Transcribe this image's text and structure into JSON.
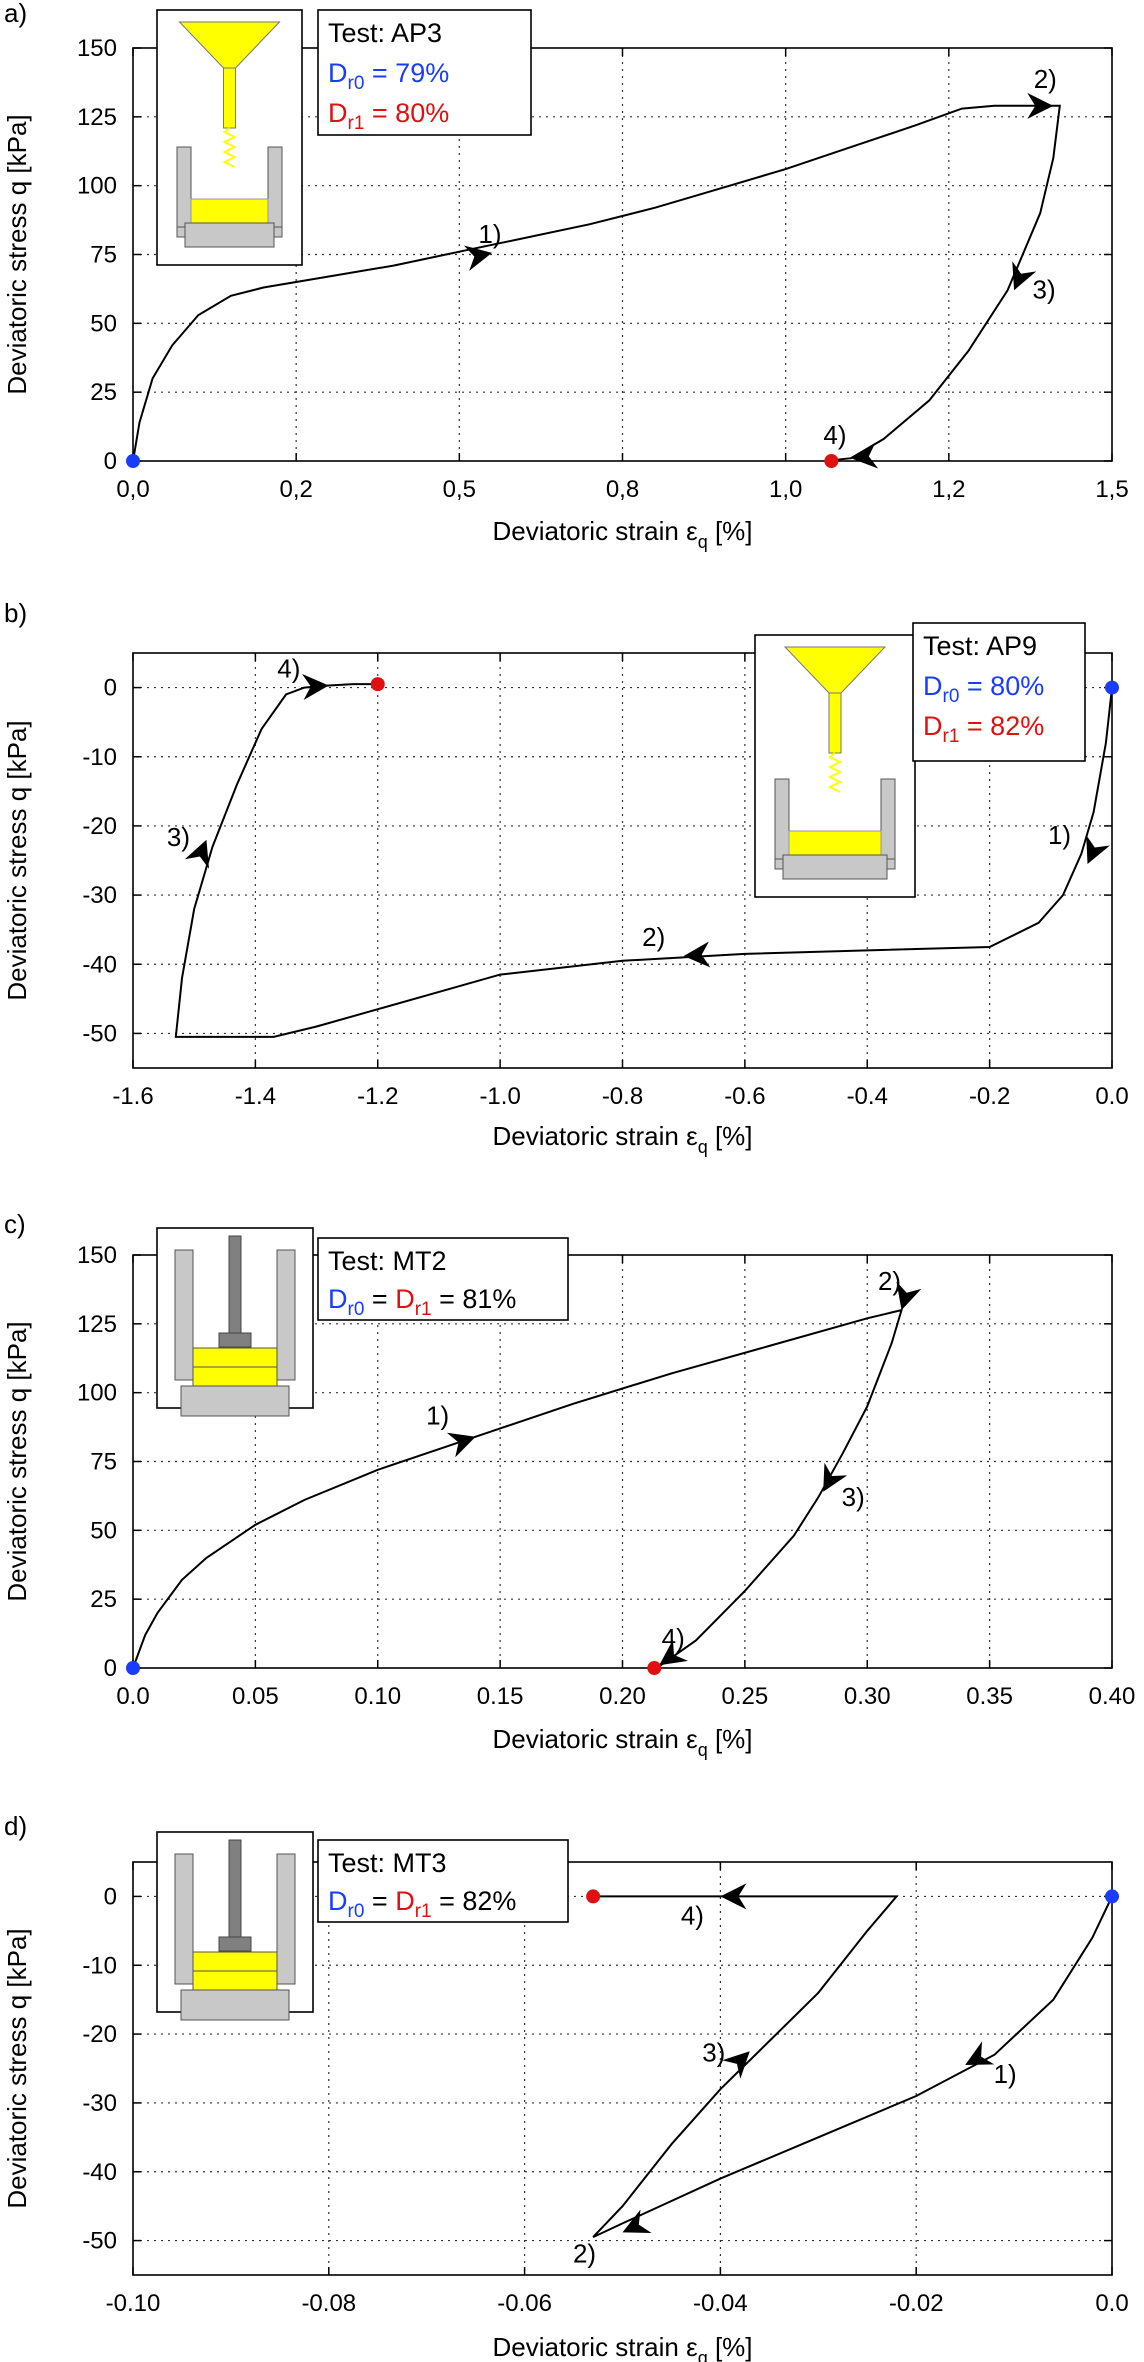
{
  "chart_data": [
    {
      "type": "line",
      "panel_label": "a)",
      "xlabel": "Deviatoric strain",
      "xlabel_unit": "[%]",
      "ylabel": "Deviatoric stress q [kPa]",
      "xlim": [
        0,
        1.5
      ],
      "ylim": [
        0,
        150
      ],
      "xticks": [
        0,
        0.25,
        0.5,
        0.75,
        1.0,
        1.25,
        1.5
      ],
      "xtick_labels": [
        "0,0",
        "0,2",
        "0,5",
        "0,8",
        "1,0",
        "1,2",
        "1,5"
      ],
      "yticks": [
        0,
        25,
        50,
        75,
        100,
        125,
        150
      ],
      "ytick_labels": [
        "0",
        "25",
        "50",
        "75",
        "100",
        "125",
        "150"
      ],
      "legend": {
        "title": "Test: AP3",
        "dr0_text": "D",
        "dr0_sub": "r0",
        "dr0_value": " = 79%",
        "dr1_text": "D",
        "dr1_sub": "r1",
        "dr1_value": " = 80%"
      },
      "inset": "pluviation",
      "series": [
        {
          "name": "AP3",
          "x": [
            0,
            0.01,
            0.03,
            0.06,
            0.1,
            0.15,
            0.2,
            0.3,
            0.4,
            0.5,
            0.6,
            0.7,
            0.8,
            0.9,
            1.0,
            1.1,
            1.2,
            1.27,
            1.32,
            1.42,
            1.41,
            1.39,
            1.34,
            1.28,
            1.22,
            1.15,
            1.1,
            1.06
          ],
          "y": [
            0,
            14,
            30,
            42,
            53,
            60,
            63,
            67,
            71,
            76,
            81,
            86,
            92,
            99,
            106,
            114,
            122,
            128,
            129,
            129,
            110,
            90,
            62,
            40,
            22,
            8,
            1,
            0
          ]
        }
      ],
      "arrows": [
        {
          "x": 0.55,
          "y": 75.6,
          "label": "1)"
        },
        {
          "x": 1.41,
          "y": 129,
          "label": "2)"
        },
        {
          "x": 1.35,
          "y": 62,
          "label": "3)"
        },
        {
          "x": 1.1,
          "y": 1,
          "label": "4)"
        }
      ],
      "start_point": {
        "x": 0,
        "y": 0
      },
      "end_point": {
        "x": 1.07,
        "y": 0
      }
    },
    {
      "type": "line",
      "panel_label": "b)",
      "xlabel": "Deviatoric strain",
      "xlabel_unit": "[%]",
      "ylabel": "Deviatoric stress q [kPa]",
      "xlim": [
        -1.6,
        0
      ],
      "ylim": [
        -55,
        5
      ],
      "xticks": [
        -1.6,
        -1.4,
        -1.2,
        -1.0,
        -0.8,
        -0.6,
        -0.4,
        -0.2,
        0.0
      ],
      "xtick_labels": [
        "-1.6",
        "-1.4",
        "-1.2",
        "-1.0",
        "-0.8",
        "-0.6",
        "-0.4",
        "-0.2",
        "0.0"
      ],
      "yticks": [
        -50,
        -40,
        -30,
        -20,
        -10,
        0
      ],
      "ytick_labels": [
        "-50",
        "-40",
        "-30",
        "-20",
        "-10",
        "0"
      ],
      "legend": {
        "title": "Test: AP9",
        "dr0_text": "D",
        "dr0_sub": "r0",
        "dr0_value": " = 80%",
        "dr1_text": "D",
        "dr1_sub": "r1",
        "dr1_value": " = 82%"
      },
      "inset": "pluviation",
      "series": [
        {
          "name": "AP9",
          "x": [
            0,
            -0.01,
            -0.03,
            -0.05,
            -0.08,
            -0.12,
            -0.2,
            -0.4,
            -0.6,
            -0.8,
            -1.0,
            -1.1,
            -1.2,
            -1.3,
            -1.37,
            -1.45,
            -1.53,
            -1.52,
            -1.5,
            -1.47,
            -1.43,
            -1.39,
            -1.35,
            -1.32,
            -1.28,
            -1.24,
            -1.2
          ],
          "y": [
            0,
            -8,
            -18,
            -24,
            -30,
            -34,
            -37.5,
            -38,
            -38.5,
            -39.5,
            -41.5,
            -44,
            -46.5,
            -49,
            -50.5,
            -50.5,
            -50.5,
            -42,
            -32,
            -23,
            -14,
            -6,
            -1,
            0,
            0.3,
            0.5,
            0.5
          ]
        }
      ],
      "arrows": [
        {
          "x": -0.04,
          "y": -25.5,
          "label": "1)"
        },
        {
          "x": -0.7,
          "y": -38.8,
          "label": "2)"
        },
        {
          "x": -1.48,
          "y": -22,
          "label": "3)"
        },
        {
          "x": -1.28,
          "y": 0.3,
          "label": "4)"
        }
      ],
      "start_point": {
        "x": 0,
        "y": 0
      },
      "end_point": {
        "x": -1.2,
        "y": 0.5
      }
    },
    {
      "type": "line",
      "panel_label": "c)",
      "xlabel": "Deviatoric strain",
      "xlabel_unit": "[%]",
      "ylabel": "Deviatoric stress q [kPa]",
      "xlim": [
        0,
        0.4
      ],
      "ylim": [
        0,
        150
      ],
      "xticks": [
        0,
        0.05,
        0.1,
        0.15,
        0.2,
        0.25,
        0.3,
        0.35,
        0.4
      ],
      "xtick_labels": [
        "0.0",
        "0.05",
        "0.10",
        "0.15",
        "0.20",
        "0.25",
        "0.30",
        "0.35",
        "0.40"
      ],
      "yticks": [
        0,
        25,
        50,
        75,
        100,
        125,
        150
      ],
      "ytick_labels": [
        "0",
        "25",
        "50",
        "75",
        "100",
        "125",
        "150"
      ],
      "legend": {
        "title": "Test: MT2",
        "dr0_text": "D",
        "dr0_sub": "r0",
        "dr1_text": "D",
        "dr1_sub": "r1",
        "dr1_value": " = 81%"
      },
      "inset": "moist_tamping",
      "series": [
        {
          "name": "MT2",
          "x": [
            0,
            0.005,
            0.01,
            0.02,
            0.03,
            0.05,
            0.07,
            0.1,
            0.14,
            0.18,
            0.22,
            0.26,
            0.3,
            0.314,
            0.31,
            0.3,
            0.29,
            0.28,
            0.27,
            0.25,
            0.23,
            0.214
          ],
          "y": [
            0,
            12,
            20,
            32,
            40,
            52,
            61,
            72,
            84,
            96,
            107,
            117,
            127,
            130,
            118,
            95,
            78,
            62,
            48,
            28,
            10,
            0
          ]
        }
      ],
      "arrows": [
        {
          "x": 0.14,
          "y": 84,
          "label": "1)"
        },
        {
          "x": 0.314,
          "y": 130,
          "label": "2)"
        },
        {
          "x": 0.282,
          "y": 64,
          "label": "3)"
        },
        {
          "x": 0.215,
          "y": 1,
          "label": "4)"
        }
      ],
      "start_point": {
        "x": 0,
        "y": 0
      },
      "end_point": {
        "x": 0.213,
        "y": 0
      }
    },
    {
      "type": "line",
      "panel_label": "d)",
      "xlabel": "Deviatoric strain",
      "xlabel_unit": "[%]",
      "ylabel": "Deviatoric stress q [kPa]",
      "xlim": [
        -0.1,
        0
      ],
      "ylim": [
        -55,
        5
      ],
      "xticks": [
        -0.1,
        -0.08,
        -0.06,
        -0.04,
        -0.02,
        0.0
      ],
      "xtick_labels": [
        "-0.10",
        "-0.08",
        "-0.06",
        "-0.04",
        "-0.02",
        "0.0"
      ],
      "yticks": [
        -50,
        -40,
        -30,
        -20,
        -10,
        0
      ],
      "ytick_labels": [
        "-50",
        "-40",
        "-30",
        "-20",
        "-10",
        "0"
      ],
      "legend": {
        "title": "Test: MT3",
        "dr0_text": "D",
        "dr0_sub": "r0",
        "dr1_text": "D",
        "dr1_sub": "r1",
        "dr1_value": " = 82%"
      },
      "inset": "moist_tamping",
      "series": [
        {
          "name": "MT3",
          "x": [
            0,
            -0.002,
            -0.006,
            -0.012,
            -0.02,
            -0.03,
            -0.04,
            -0.05,
            -0.053,
            -0.05,
            -0.045,
            -0.04,
            -0.035,
            -0.03,
            -0.025,
            -0.022,
            -0.03,
            -0.04,
            -0.053
          ],
          "y": [
            0,
            -6,
            -15,
            -23,
            -29,
            -35,
            -41,
            -47.5,
            -49.5,
            -45,
            -36,
            -28,
            -21,
            -14,
            -5,
            0,
            0,
            0,
            0
          ]
        }
      ],
      "arrows": [
        {
          "x": -0.015,
          "y": -24.5,
          "label": "1)"
        },
        {
          "x": -0.05,
          "y": -48.8,
          "label": "2)"
        },
        {
          "x": -0.037,
          "y": -22.5,
          "label": "3)"
        },
        {
          "x": -0.04,
          "y": 0,
          "label": "4)"
        }
      ],
      "start_point": {
        "x": 0,
        "y": 0
      },
      "end_point": {
        "x": -0.053,
        "y": 0
      }
    }
  ],
  "colors": {
    "start": "#1a3cff",
    "end": "#e01010",
    "sand": "#ffff00",
    "wall": "#c8c8c8",
    "rod": "#808080"
  },
  "greek_epsilon": "ε",
  "epsilon_sub": "q"
}
